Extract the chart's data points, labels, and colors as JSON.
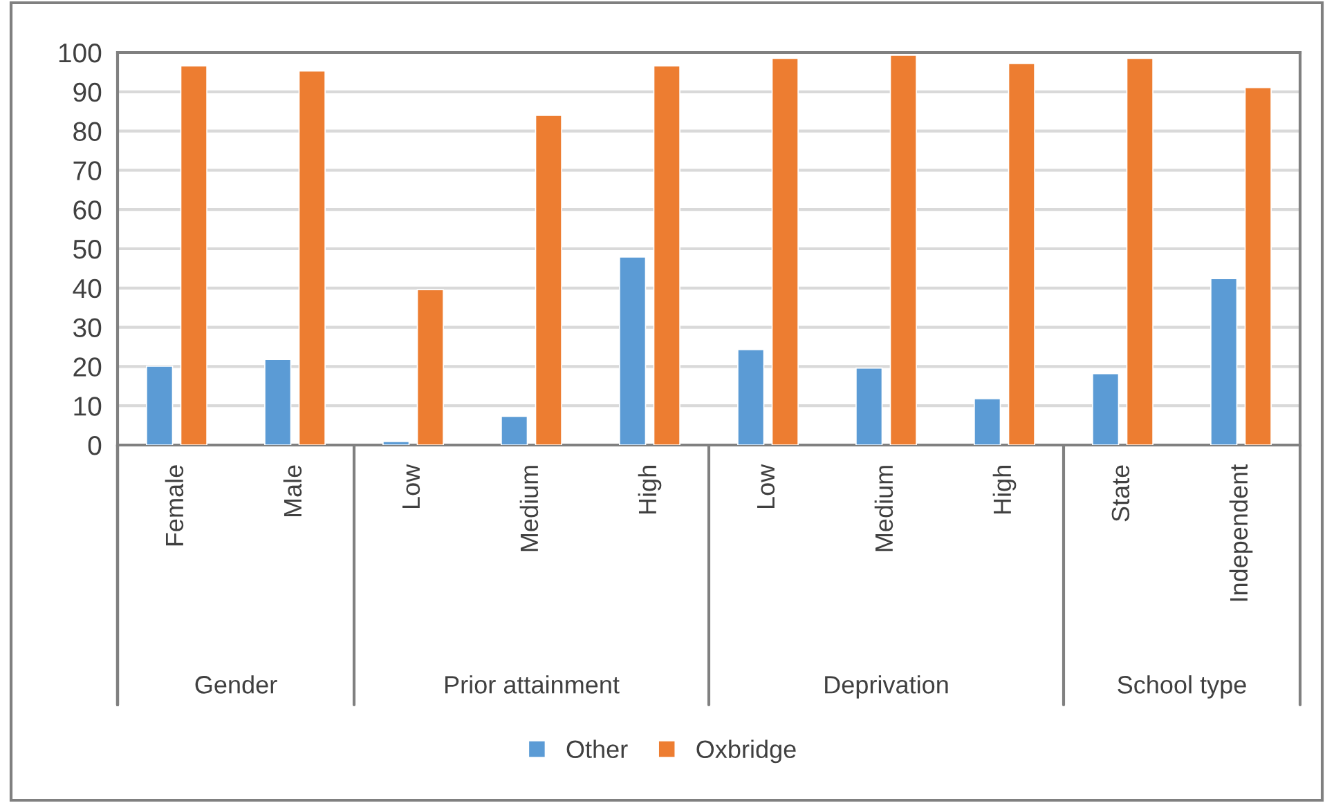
{
  "chart_data": {
    "type": "bar",
    "categories": [
      "Female",
      "Male",
      "Low",
      "Medium",
      "High",
      "Low",
      "Medium",
      "High",
      "State",
      "Independent"
    ],
    "series": [
      {
        "name": "Other",
        "color": "#5b9bd5",
        "values": [
          20.1,
          21.8,
          0.9,
          7.3,
          47.9,
          24.3,
          19.6,
          11.8,
          18.2,
          42.4
        ]
      },
      {
        "name": "Oxbridge",
        "color": "#ed7d31",
        "values": [
          96.6,
          95.3,
          39.6,
          84.0,
          96.6,
          98.5,
          99.3,
          97.2,
          98.5,
          91.1
        ]
      }
    ],
    "annotations": [
      "Gender",
      "Prior attainment",
      "Deprivation",
      "School type"
    ],
    "ylim": [
      0,
      100
    ],
    "yticks": [
      0,
      10,
      20,
      30,
      40,
      50,
      60,
      70,
      80,
      90,
      100
    ],
    "grid": "y",
    "legend": "bottom"
  }
}
